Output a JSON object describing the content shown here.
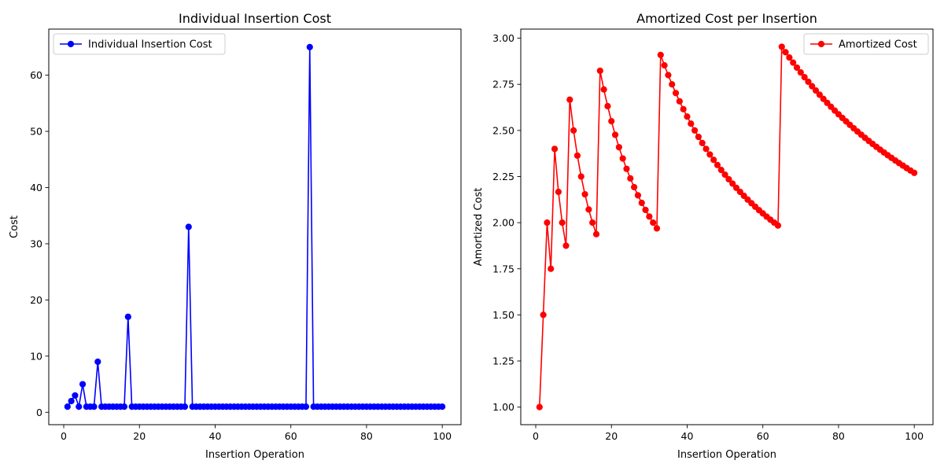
{
  "figure": {
    "background": "#ffffff"
  },
  "chart_data": [
    {
      "type": "line",
      "title": "Individual Insertion Cost",
      "xlabel": "Insertion Operation",
      "ylabel": "Cost",
      "xlim": [
        -3.95,
        104.95
      ],
      "ylim": [
        -2.2,
        68.2
      ],
      "xticks": [
        0,
        20,
        40,
        60,
        80,
        100
      ],
      "yticks": [
        0,
        10,
        20,
        30,
        40,
        50,
        60
      ],
      "grid": false,
      "legend_position": "top-left",
      "series": [
        {
          "name": "Individual Insertion Cost",
          "color": "#0000ff",
          "marker": "circle",
          "x": [
            1,
            2,
            3,
            4,
            5,
            6,
            7,
            8,
            9,
            10,
            11,
            12,
            13,
            14,
            15,
            16,
            17,
            18,
            19,
            20,
            21,
            22,
            23,
            24,
            25,
            26,
            27,
            28,
            29,
            30,
            31,
            32,
            33,
            34,
            35,
            36,
            37,
            38,
            39,
            40,
            41,
            42,
            43,
            44,
            45,
            46,
            47,
            48,
            49,
            50,
            51,
            52,
            53,
            54,
            55,
            56,
            57,
            58,
            59,
            60,
            61,
            62,
            63,
            64,
            65,
            66,
            67,
            68,
            69,
            70,
            71,
            72,
            73,
            74,
            75,
            76,
            77,
            78,
            79,
            80,
            81,
            82,
            83,
            84,
            85,
            86,
            87,
            88,
            89,
            90,
            91,
            92,
            93,
            94,
            95,
            96,
            97,
            98,
            99,
            100
          ],
          "y": [
            1,
            2,
            3,
            1,
            5,
            1,
            1,
            1,
            9,
            1,
            1,
            1,
            1,
            1,
            1,
            1,
            17,
            1,
            1,
            1,
            1,
            1,
            1,
            1,
            1,
            1,
            1,
            1,
            1,
            1,
            1,
            1,
            33,
            1,
            1,
            1,
            1,
            1,
            1,
            1,
            1,
            1,
            1,
            1,
            1,
            1,
            1,
            1,
            1,
            1,
            1,
            1,
            1,
            1,
            1,
            1,
            1,
            1,
            1,
            1,
            1,
            1,
            1,
            1,
            65,
            1,
            1,
            1,
            1,
            1,
            1,
            1,
            1,
            1,
            1,
            1,
            1,
            1,
            1,
            1,
            1,
            1,
            1,
            1,
            1,
            1,
            1,
            1,
            1,
            1,
            1,
            1,
            1,
            1,
            1,
            1,
            1,
            1,
            1,
            1
          ]
        }
      ]
    },
    {
      "type": "line",
      "title": "Amortized Cost per Insertion",
      "xlabel": "Insertion Operation",
      "ylabel": "Amortized Cost",
      "xlim": [
        -3.95,
        104.95
      ],
      "ylim": [
        0.9047,
        3.0494
      ],
      "xticks": [
        0,
        20,
        40,
        60,
        80,
        100
      ],
      "yticks": [
        1.0,
        1.25,
        1.5,
        1.75,
        2.0,
        2.25,
        2.5,
        2.75,
        3.0
      ],
      "ytick_labels": [
        "1.00",
        "1.25",
        "1.50",
        "1.75",
        "2.00",
        "2.25",
        "2.50",
        "2.75",
        "3.00"
      ],
      "grid": false,
      "legend_position": "top-right",
      "series": [
        {
          "name": "Amortized Cost",
          "color": "#ff0000",
          "marker": "circle",
          "x": [
            1,
            2,
            3,
            4,
            5,
            6,
            7,
            8,
            9,
            10,
            11,
            12,
            13,
            14,
            15,
            16,
            17,
            18,
            19,
            20,
            21,
            22,
            23,
            24,
            25,
            26,
            27,
            28,
            29,
            30,
            31,
            32,
            33,
            34,
            35,
            36,
            37,
            38,
            39,
            40,
            41,
            42,
            43,
            44,
            45,
            46,
            47,
            48,
            49,
            50,
            51,
            52,
            53,
            54,
            55,
            56,
            57,
            58,
            59,
            60,
            61,
            62,
            63,
            64,
            65,
            66,
            67,
            68,
            69,
            70,
            71,
            72,
            73,
            74,
            75,
            76,
            77,
            78,
            79,
            80,
            81,
            82,
            83,
            84,
            85,
            86,
            87,
            88,
            89,
            90,
            91,
            92,
            93,
            94,
            95,
            96,
            97,
            98,
            99,
            100
          ],
          "y": [
            1.0,
            1.5,
            2.0,
            1.75,
            2.4,
            2.1667,
            2.0,
            1.875,
            2.6667,
            2.5,
            2.3636,
            2.25,
            2.1538,
            2.0714,
            2.0,
            1.9375,
            2.8235,
            2.7222,
            2.6316,
            2.55,
            2.4762,
            2.4091,
            2.3478,
            2.2917,
            2.24,
            2.1923,
            2.1481,
            2.1071,
            2.069,
            2.0333,
            2.0,
            1.9688,
            2.9091,
            2.8529,
            2.8,
            2.75,
            2.7027,
            2.6579,
            2.6154,
            2.575,
            2.5366,
            2.5,
            2.4651,
            2.4318,
            2.4,
            2.3696,
            2.3404,
            2.3125,
            2.2857,
            2.26,
            2.2353,
            2.2115,
            2.1887,
            2.1667,
            2.1455,
            2.125,
            2.1053,
            2.0862,
            2.0678,
            2.05,
            2.0328,
            2.0161,
            2.0,
            1.9844,
            2.9538,
            2.9242,
            2.8955,
            2.8676,
            2.8406,
            2.8143,
            2.7887,
            2.7639,
            2.7397,
            2.7162,
            2.6933,
            2.6711,
            2.6494,
            2.6282,
            2.6076,
            2.5875,
            2.5679,
            2.5488,
            2.5301,
            2.5119,
            2.4941,
            2.4767,
            2.4598,
            2.4432,
            2.427,
            2.4111,
            2.3956,
            2.3804,
            2.3656,
            2.3511,
            2.3368,
            2.3229,
            2.3093,
            2.2959,
            2.2828,
            2.27
          ]
        }
      ]
    }
  ]
}
